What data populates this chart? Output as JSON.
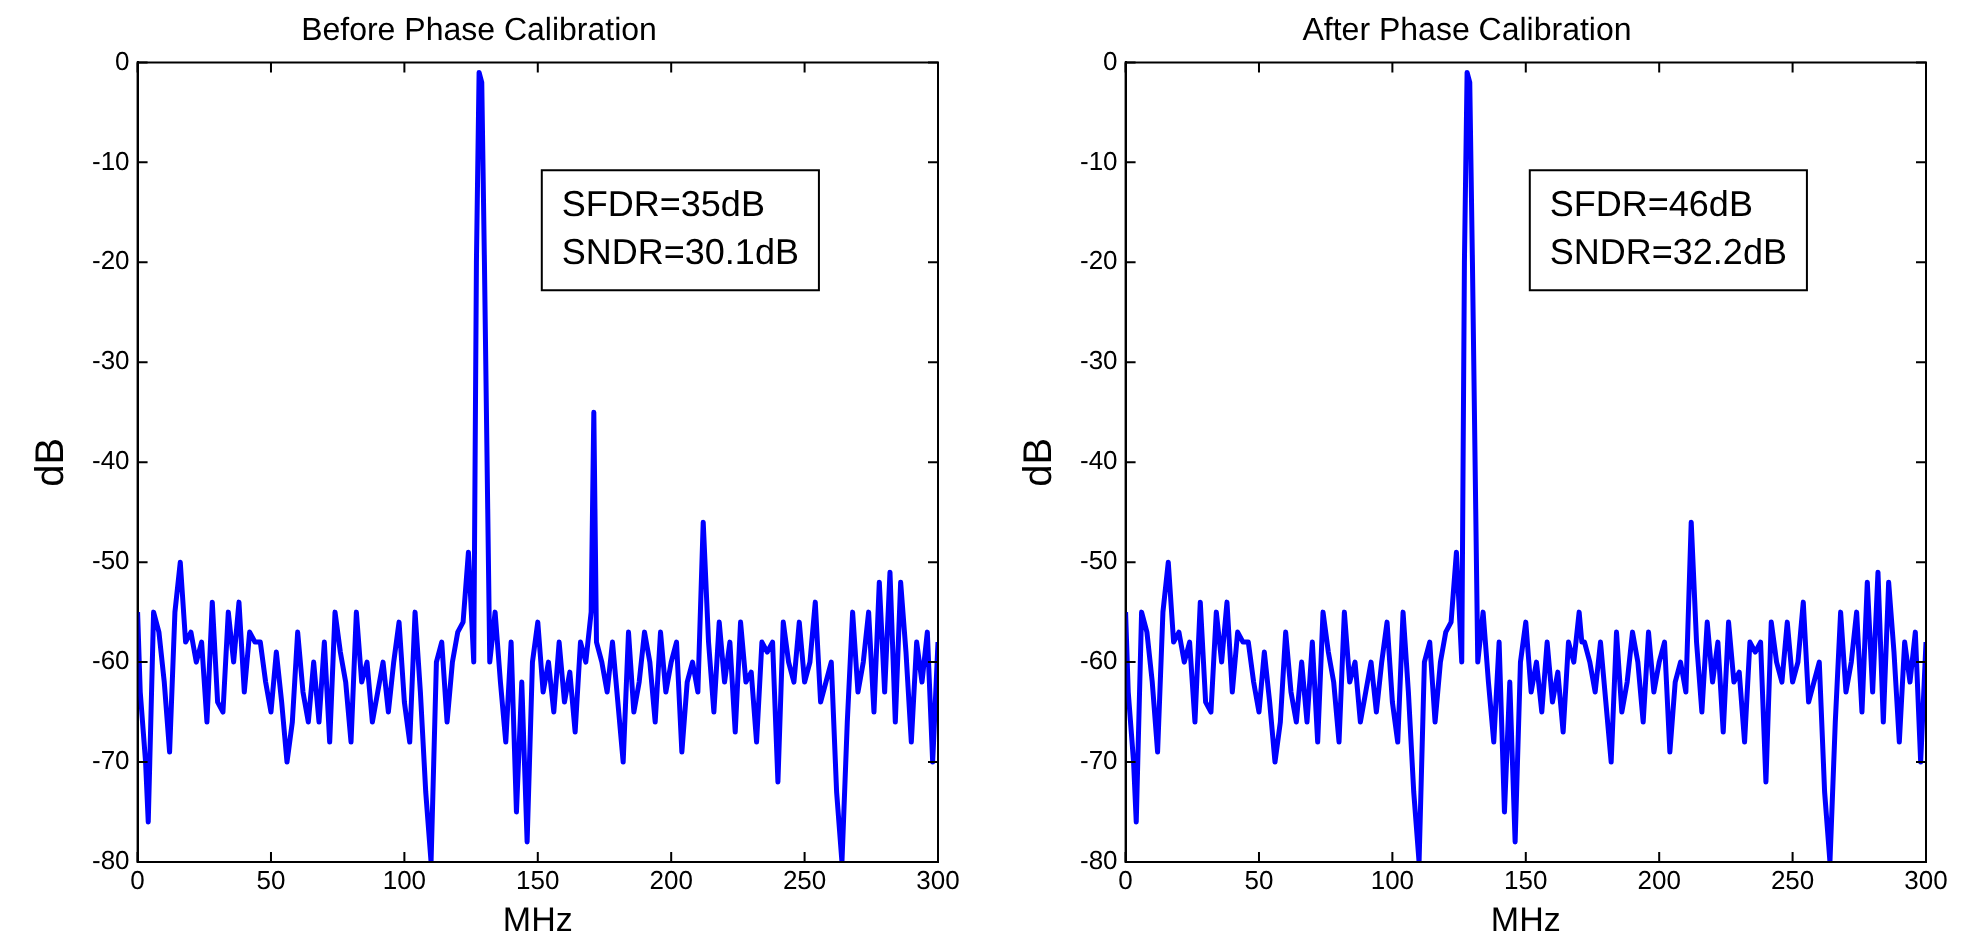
{
  "chart_data": [
    {
      "type": "line",
      "title": "Before Phase Calibration",
      "xlabel": "MHz",
      "ylabel": "dB",
      "xlim": [
        0,
        300
      ],
      "ylim": [
        -80,
        0
      ],
      "xticks": [
        0,
        50,
        100,
        150,
        200,
        250,
        300
      ],
      "yticks": [
        -80,
        -70,
        -60,
        -50,
        -40,
        -30,
        -20,
        -10,
        0
      ],
      "annotations": [
        "SFDR=35dB",
        "SNDR=30.1dB"
      ],
      "x": [
        0,
        1,
        3,
        4,
        6,
        8,
        10,
        12,
        14,
        16,
        18,
        20,
        22,
        24,
        26,
        28,
        30,
        32,
        34,
        36,
        38,
        40,
        42,
        44,
        46,
        48,
        50,
        52,
        54,
        56,
        58,
        60,
        62,
        64,
        66,
        68,
        70,
        72,
        74,
        76,
        78,
        80,
        82,
        84,
        86,
        88,
        90,
        92,
        94,
        96,
        98,
        100,
        102,
        104,
        106,
        108,
        110,
        112,
        114,
        116,
        118,
        120,
        122,
        124,
        126,
        127,
        128,
        129,
        130,
        132,
        134,
        136,
        138,
        140,
        142,
        144,
        146,
        148,
        150,
        152,
        154,
        156,
        158,
        160,
        162,
        164,
        166,
        168,
        170,
        171,
        172,
        174,
        176,
        178,
        180,
        182,
        184,
        186,
        188,
        190,
        192,
        194,
        196,
        198,
        200,
        202,
        204,
        206,
        208,
        210,
        212,
        214,
        216,
        218,
        220,
        222,
        224,
        226,
        228,
        230,
        232,
        234,
        236,
        238,
        240,
        242,
        244,
        246,
        248,
        250,
        252,
        254,
        256,
        258,
        260,
        262,
        264,
        266,
        268,
        270,
        272,
        274,
        276,
        278,
        280,
        282,
        284,
        286,
        288,
        290,
        292,
        294,
        296,
        298,
        300
      ],
      "series": [
        {
          "color": "#0000ff",
          "values": [
            -55,
            -63,
            -70,
            -76,
            -55,
            -57,
            -62,
            -69,
            -55,
            -50,
            -58,
            -57,
            -60,
            -58,
            -66,
            -54,
            -64,
            -65,
            -55,
            -60,
            -54,
            -63,
            -57,
            -58,
            -58,
            -62,
            -65,
            -59,
            -64,
            -70,
            -66,
            -57,
            -63,
            -66,
            -60,
            -66,
            -58,
            -68,
            -55,
            -59,
            -62,
            -68,
            -55,
            -62,
            -60,
            -66,
            -63,
            -60,
            -65,
            -60,
            -56,
            -64,
            -68,
            -55,
            -63,
            -73,
            -80,
            -60,
            -58,
            -66,
            -60,
            -57,
            -56,
            -49,
            -60,
            -20,
            -1,
            -2,
            -20,
            -60,
            -55,
            -62,
            -68,
            -58,
            -75,
            -62,
            -78,
            -60,
            -56,
            -63,
            -60,
            -65,
            -58,
            -64,
            -61,
            -67,
            -58,
            -60,
            -55,
            -35,
            -58,
            -60,
            -63,
            -58,
            -64,
            -70,
            -57,
            -65,
            -62,
            -57,
            -60,
            -66,
            -57,
            -63,
            -60,
            -58,
            -69,
            -62,
            -60,
            -63,
            -46,
            -58,
            -65,
            -56,
            -62,
            -58,
            -67,
            -56,
            -62,
            -61,
            -68,
            -58,
            -59,
            -58,
            -72,
            -56,
            -60,
            -62,
            -56,
            -62,
            -60,
            -54,
            -64,
            -62,
            -60,
            -73,
            -80,
            -66,
            -55,
            -63,
            -60,
            -55,
            -65,
            -52,
            -63,
            -51,
            -66,
            -52,
            -59,
            -68,
            -58,
            -62,
            -57,
            -70,
            -58
          ]
        }
      ]
    },
    {
      "type": "line",
      "title": "After Phase Calibration",
      "xlabel": "MHz",
      "ylabel": "dB",
      "xlim": [
        0,
        300
      ],
      "ylim": [
        -80,
        0
      ],
      "xticks": [
        0,
        50,
        100,
        150,
        200,
        250,
        300
      ],
      "yticks": [
        -80,
        -70,
        -60,
        -50,
        -40,
        -30,
        -20,
        -10,
        0
      ],
      "annotations": [
        "SFDR=46dB",
        "SNDR=32.2dB"
      ],
      "x": [
        0,
        1,
        3,
        4,
        6,
        8,
        10,
        12,
        14,
        16,
        18,
        20,
        22,
        24,
        26,
        28,
        30,
        32,
        34,
        36,
        38,
        40,
        42,
        44,
        46,
        48,
        50,
        52,
        54,
        56,
        58,
        60,
        62,
        64,
        66,
        68,
        70,
        72,
        74,
        76,
        78,
        80,
        82,
        84,
        86,
        88,
        90,
        92,
        94,
        96,
        98,
        100,
        102,
        104,
        106,
        108,
        110,
        112,
        114,
        116,
        118,
        120,
        122,
        124,
        126,
        127,
        128,
        129,
        130,
        132,
        134,
        136,
        138,
        140,
        142,
        144,
        146,
        148,
        150,
        152,
        154,
        156,
        158,
        160,
        162,
        164,
        166,
        168,
        170,
        171,
        172,
        174,
        176,
        178,
        180,
        182,
        184,
        186,
        188,
        190,
        192,
        194,
        196,
        198,
        200,
        202,
        204,
        206,
        208,
        210,
        212,
        214,
        216,
        218,
        220,
        222,
        224,
        226,
        228,
        230,
        232,
        234,
        236,
        238,
        240,
        242,
        244,
        246,
        248,
        250,
        252,
        254,
        256,
        258,
        260,
        262,
        264,
        266,
        268,
        270,
        272,
        274,
        276,
        278,
        280,
        282,
        284,
        286,
        288,
        290,
        292,
        294,
        296,
        298,
        300
      ],
      "series": [
        {
          "color": "#0000ff",
          "values": [
            -55,
            -63,
            -70,
            -76,
            -55,
            -57,
            -62,
            -69,
            -55,
            -50,
            -58,
            -57,
            -60,
            -58,
            -66,
            -54,
            -64,
            -65,
            -55,
            -60,
            -54,
            -63,
            -57,
            -58,
            -58,
            -62,
            -65,
            -59,
            -64,
            -70,
            -66,
            -57,
            -63,
            -66,
            -60,
            -66,
            -58,
            -68,
            -55,
            -59,
            -62,
            -68,
            -55,
            -62,
            -60,
            -66,
            -63,
            -60,
            -65,
            -60,
            -56,
            -64,
            -68,
            -55,
            -63,
            -73,
            -80,
            -60,
            -58,
            -66,
            -60,
            -57,
            -56,
            -49,
            -60,
            -20,
            -1,
            -2,
            -20,
            -60,
            -55,
            -62,
            -68,
            -58,
            -75,
            -62,
            -78,
            -60,
            -56,
            -63,
            -60,
            -65,
            -58,
            -64,
            -61,
            -67,
            -58,
            -60,
            -55,
            -58,
            -58,
            -60,
            -63,
            -58,
            -64,
            -70,
            -57,
            -65,
            -62,
            -57,
            -60,
            -66,
            -57,
            -63,
            -60,
            -58,
            -69,
            -62,
            -60,
            -63,
            -46,
            -58,
            -65,
            -56,
            -62,
            -58,
            -67,
            -56,
            -62,
            -61,
            -68,
            -58,
            -59,
            -58,
            -72,
            -56,
            -60,
            -62,
            -56,
            -62,
            -60,
            -54,
            -64,
            -62,
            -60,
            -73,
            -80,
            -66,
            -55,
            -63,
            -60,
            -55,
            -65,
            -52,
            -63,
            -51,
            -66,
            -52,
            -59,
            -68,
            -58,
            -62,
            -57,
            -70,
            -58
          ]
        }
      ]
    }
  ]
}
